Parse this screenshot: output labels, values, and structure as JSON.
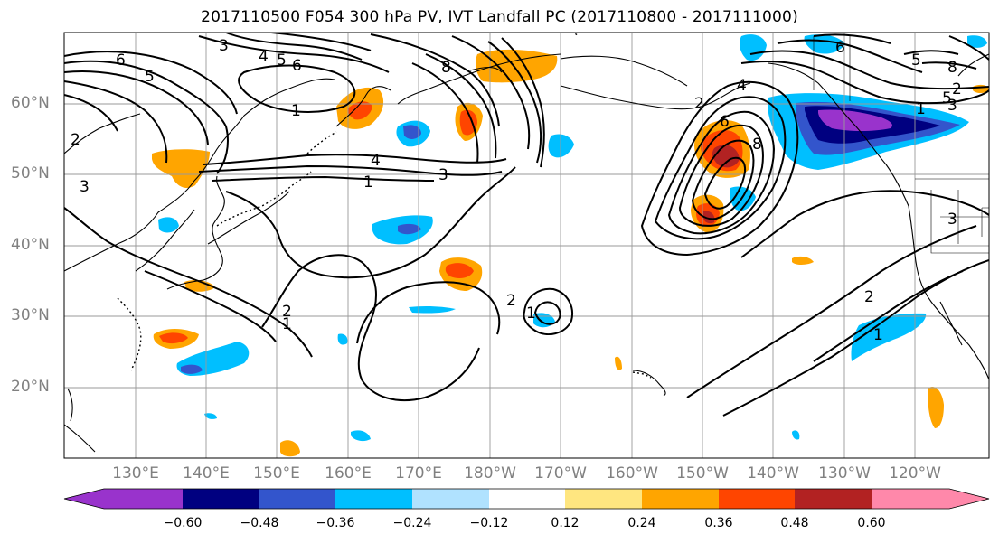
{
  "title": "2017110500 F054 300 hPa PV, IVT Landfall PC (2017110800 - 2017111000)",
  "lat_labels": [
    "60°N",
    "50°N",
    "40°N",
    "30°N",
    "20°N"
  ],
  "lon_labels": [
    "130°E",
    "140°E",
    "150°E",
    "160°E",
    "170°E",
    "180°W",
    "170°W",
    "160°W",
    "150°W",
    "140°W",
    "130°W",
    "120°W"
  ],
  "colorbar": {
    "colors": [
      "#9933cc",
      "#000080",
      "#3355cc",
      "#00bfff",
      "#b0e2ff",
      "#ffffff",
      "#ffe680",
      "#ffa500",
      "#ff4500",
      "#b22222",
      "#ff88aa"
    ],
    "ticks": [
      "−0.60",
      "−0.48",
      "−0.36",
      "−0.24",
      "−0.12",
      "0.12",
      "0.24",
      "0.36",
      "0.48",
      "0.60"
    ]
  },
  "contour_labels": [
    "3",
    "4",
    "5",
    "6",
    "5",
    "8",
    "1",
    "2",
    "3",
    "4",
    "3",
    "1",
    "2",
    "1",
    "2",
    "1",
    "2",
    "4",
    "6",
    "6",
    "8",
    "8",
    "5",
    "3",
    "1",
    "2",
    "3",
    "1",
    "2",
    "5",
    "6"
  ]
}
